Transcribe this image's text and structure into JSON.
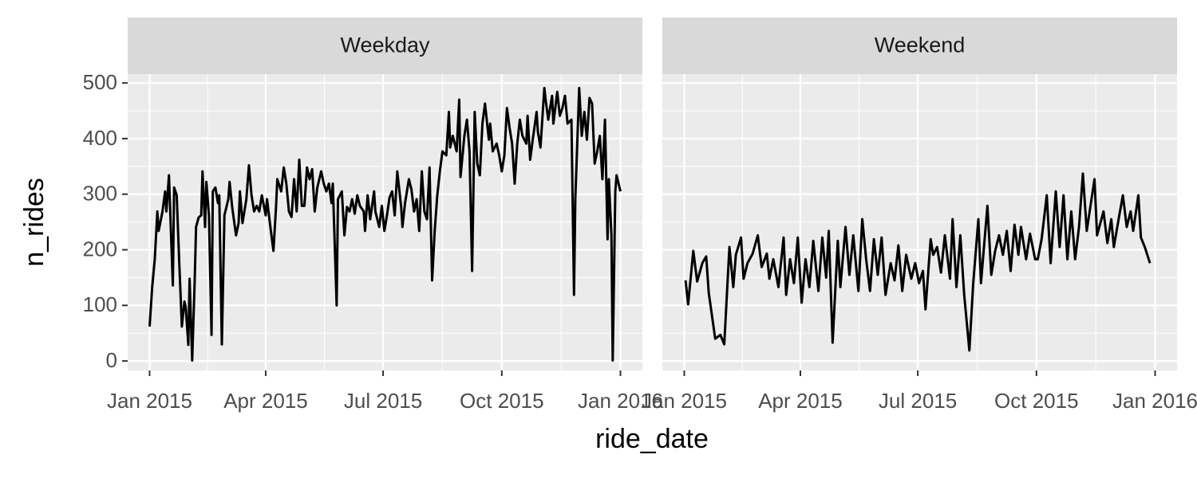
{
  "chart_data": {
    "type": "line",
    "x_label": "ride_date",
    "y_label": "n_rides",
    "color": "#000000",
    "grid": true,
    "xlim": [
      -17,
      382
    ],
    "ylim": [
      -17,
      516
    ],
    "xticks": [
      {
        "value": 0,
        "label": "Jan 2015"
      },
      {
        "value": 90,
        "label": "Apr 2015"
      },
      {
        "value": 181,
        "label": "Jul 2015"
      },
      {
        "value": 273,
        "label": "Oct 2015"
      },
      {
        "value": 365,
        "label": "Jan 2016"
      }
    ],
    "yticks": [
      0,
      100,
      200,
      300,
      400,
      500
    ],
    "panels": [
      {
        "title": "Weekday",
        "x": [
          0,
          2,
          4,
          6,
          7,
          10,
          12,
          13,
          15,
          18,
          19,
          21,
          23,
          25,
          27,
          28,
          30,
          31,
          33,
          35,
          36,
          38,
          40,
          41,
          43,
          44,
          46,
          48,
          49,
          51,
          53,
          54,
          56,
          58,
          61,
          62,
          64,
          67,
          69,
          70,
          72,
          75,
          77,
          79,
          81,
          83,
          85,
          87,
          90,
          91,
          94,
          96,
          98,
          99,
          102,
          104,
          106,
          108,
          110,
          112,
          114,
          116,
          118,
          120,
          122,
          124,
          126,
          128,
          130,
          133,
          135,
          137,
          139,
          141,
          142,
          145,
          146,
          149,
          151,
          153,
          155,
          157,
          159,
          161,
          163,
          166,
          167,
          169,
          171,
          174,
          175,
          178,
          180,
          182,
          184,
          186,
          188,
          190,
          192,
          195,
          196,
          198,
          201,
          203,
          205,
          207,
          209,
          211,
          213,
          215,
          217,
          219,
          221,
          223,
          225,
          227,
          230,
          232,
          233,
          235,
          238,
          240,
          241,
          244,
          246,
          248,
          250,
          252,
          254,
          256,
          258,
          260,
          263,
          264,
          266,
          269,
          271,
          273,
          275,
          277,
          279,
          281,
          283,
          285,
          287,
          289,
          292,
          293,
          295,
          297,
          300,
          301,
          303,
          306,
          307,
          309,
          312,
          313,
          316,
          318,
          320,
          322,
          324,
          327,
          329,
          330,
          333,
          335,
          337,
          339,
          341,
          343,
          345,
          347,
          349,
          351,
          353,
          355,
          356,
          358,
          359,
          361,
          362,
          365
        ],
        "values": [
          62,
          133,
          183,
          269,
          234,
          269,
          305,
          269,
          334,
          136,
          312,
          298,
          176,
          62,
          107,
          97,
          29,
          148,
          1,
          148,
          241,
          258,
          262,
          341,
          241,
          322,
          262,
          47,
          305,
          312,
          284,
          298,
          30,
          262,
          291,
          322,
          277,
          226,
          248,
          305,
          248,
          291,
          352,
          298,
          269,
          279,
          269,
          298,
          262,
          291,
          234,
          198,
          277,
          327,
          305,
          348,
          319,
          269,
          259,
          327,
          269,
          362,
          279,
          279,
          348,
          327,
          345,
          269,
          312,
          341,
          319,
          305,
          319,
          284,
          319,
          100,
          291,
          305,
          226,
          277,
          269,
          291,
          265,
          298,
          279,
          269,
          234,
          298,
          255,
          305,
          269,
          241,
          279,
          234,
          262,
          294,
          305,
          262,
          341,
          277,
          241,
          284,
          327,
          308,
          269,
          291,
          234,
          341,
          269,
          255,
          348,
          145,
          234,
          298,
          341,
          377,
          370,
          448,
          384,
          405,
          377,
          470,
          331,
          405,
          434,
          377,
          162,
          448,
          355,
          334,
          427,
          463,
          398,
          427,
          377,
          391,
          370,
          341,
          370,
          455,
          420,
          391,
          319,
          391,
          434,
          405,
          391,
          441,
          362,
          398,
          448,
          412,
          384,
          491,
          470,
          434,
          477,
          427,
          484,
          441,
          455,
          477,
          427,
          434,
          119,
          291,
          491,
          405,
          448,
          398,
          473,
          463,
          355,
          377,
          405,
          327,
          434,
          219,
          327,
          226,
          1,
          305,
          334,
          305
        ]
      },
      {
        "title": "Weekend",
        "x": [
          1,
          3,
          7,
          10,
          14,
          17,
          19,
          24,
          28,
          31,
          35,
          38,
          40,
          44,
          46,
          49,
          53,
          57,
          60,
          64,
          66,
          69,
          73,
          77,
          79,
          82,
          85,
          88,
          91,
          94,
          97,
          100,
          104,
          107,
          110,
          112,
          115,
          119,
          121,
          125,
          128,
          131,
          135,
          138,
          141,
          144,
          147,
          150,
          153,
          156,
          160,
          163,
          166,
          169,
          172,
          176,
          179,
          182,
          185,
          187,
          191,
          193,
          196,
          199,
          202,
          206,
          208,
          211,
          214,
          217,
          221,
          224,
          228,
          230,
          235,
          238,
          241,
          244,
          247,
          250,
          253,
          256,
          259,
          261,
          265,
          268,
          272,
          274,
          277,
          281,
          284,
          288,
          291,
          294,
          297,
          300,
          303,
          306,
          309,
          312,
          318,
          320,
          325,
          328,
          331,
          333,
          337,
          340,
          343,
          346,
          348,
          352,
          354,
          357,
          361
        ],
        "values": [
          145,
          102,
          198,
          143,
          176,
          188,
          122,
          40,
          47,
          30,
          205,
          133,
          191,
          222,
          148,
          176,
          193,
          226,
          169,
          193,
          148,
          183,
          133,
          222,
          119,
          183,
          140,
          222,
          105,
          183,
          133,
          216,
          126,
          222,
          150,
          234,
          33,
          216,
          133,
          241,
          155,
          226,
          126,
          255,
          183,
          126,
          219,
          155,
          222,
          119,
          176,
          145,
          208,
          126,
          191,
          148,
          176,
          140,
          162,
          93,
          219,
          191,
          205,
          159,
          226,
          148,
          255,
          133,
          226,
          119,
          19,
          140,
          255,
          140,
          279,
          155,
          198,
          226,
          191,
          234,
          162,
          245,
          191,
          241,
          183,
          229,
          183,
          183,
          219,
          298,
          176,
          305,
          205,
          298,
          183,
          269,
          183,
          241,
          337,
          234,
          327,
          226,
          269,
          212,
          255,
          205,
          259,
          298,
          241,
          269,
          234,
          298,
          222,
          205,
          176
        ]
      }
    ]
  }
}
